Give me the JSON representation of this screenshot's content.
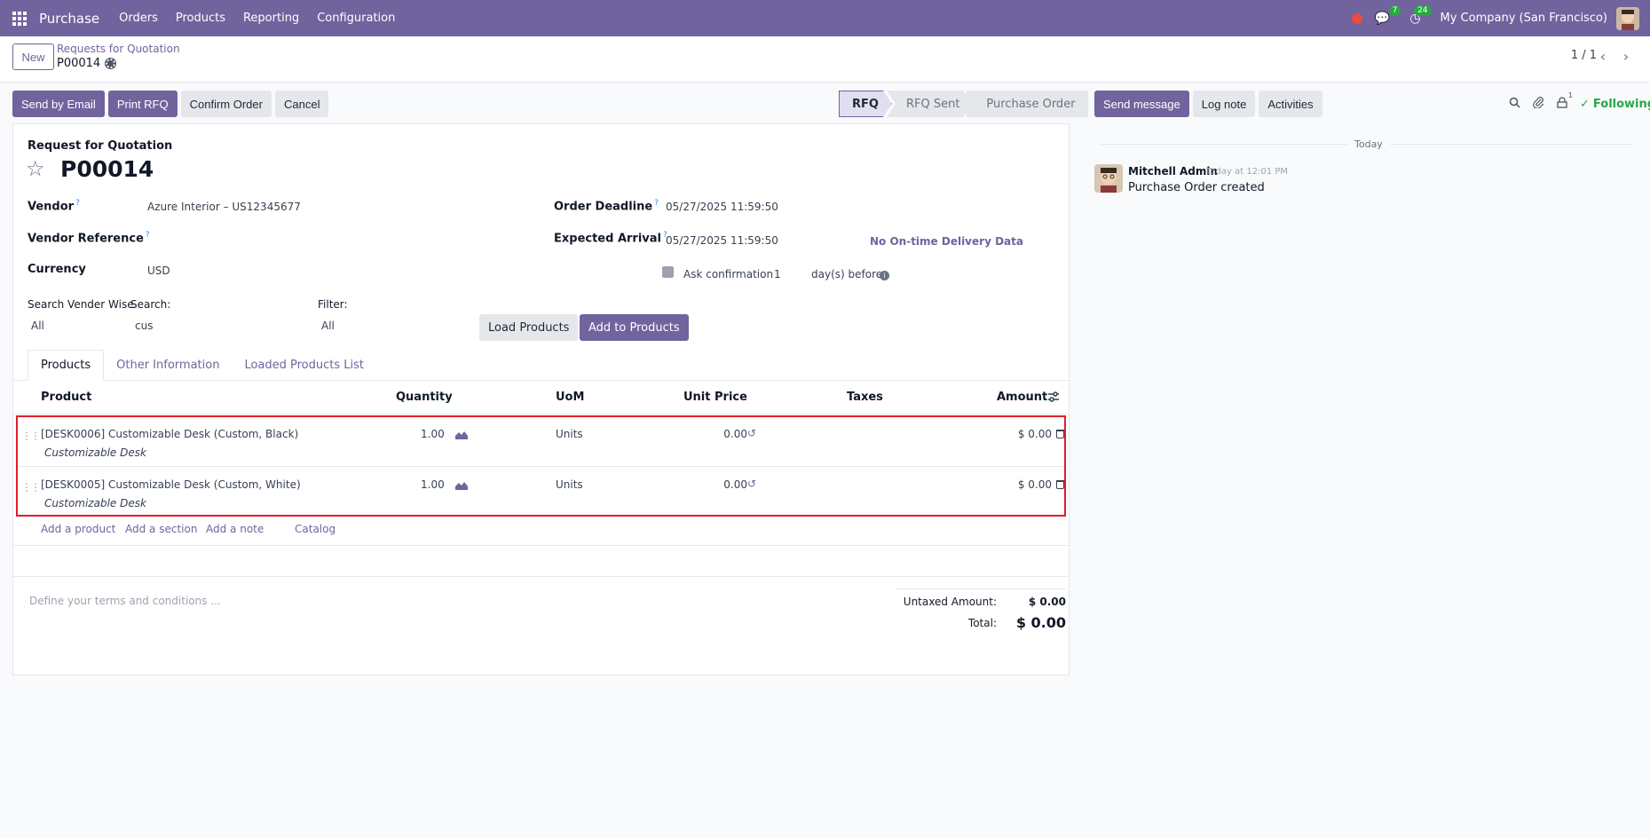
{
  "navbar": {
    "app_name": "Purchase",
    "menu": [
      "Orders",
      "Products",
      "Reporting",
      "Configuration"
    ],
    "messages_count": "7",
    "activities_count": "24",
    "company": "My Company (San Francisco)"
  },
  "control_panel": {
    "new_label": "New",
    "breadcrumb_parent": "Requests for Quotation",
    "breadcrumb_current": "P00014",
    "pager": "1 / 1"
  },
  "actions": {
    "send_email": "Send by Email",
    "print_rfq": "Print RFQ",
    "confirm_order": "Confirm Order",
    "cancel": "Cancel"
  },
  "statusbar": [
    "RFQ",
    "RFQ Sent",
    "Purchase Order"
  ],
  "form": {
    "doc_type": "Request for Quotation",
    "name": "P00014",
    "vendor_label": "Vendor",
    "vendor_value": "Azure Interior – US12345677",
    "vendor_ref_label": "Vendor Reference",
    "currency_label": "Currency",
    "currency_value": "USD",
    "order_deadline_label": "Order Deadline",
    "order_deadline_value": "05/27/2025 11:59:50",
    "expected_arrival_label": "Expected Arrival",
    "expected_arrival_value": "05/27/2025 11:59:50",
    "on_time_link": "No On-time Delivery Data",
    "ask_confirmation_label": "Ask confirmation",
    "ask_confirmation_days": "1",
    "ask_confirmation_suffix": "day(s) before",
    "search_vendor_label": "Search Vender Wise",
    "search_vendor_value": "All",
    "search_label": "Search:",
    "search_value": "cus",
    "filter_label": "Filter:",
    "filter_value": "All",
    "load_products": "Load Products",
    "add_to_products": "Add to Products"
  },
  "tabs": [
    "Products",
    "Other Information",
    "Loaded Products List"
  ],
  "table": {
    "headers": {
      "product": "Product",
      "quantity": "Quantity",
      "uom": "UoM",
      "unit_price": "Unit Price",
      "taxes": "Taxes",
      "amount": "Amount"
    },
    "rows": [
      {
        "product": "[DESK0006] Customizable Desk (Custom, Black)",
        "description": "Customizable Desk",
        "quantity": "1.00",
        "uom": "Units",
        "unit_price": "0.00",
        "amount": "$ 0.00"
      },
      {
        "product": "[DESK0005] Customizable Desk (Custom, White)",
        "description": "Customizable Desk",
        "quantity": "1.00",
        "uom": "Units",
        "unit_price": "0.00",
        "amount": "$ 0.00"
      }
    ],
    "add_product": "Add a product",
    "add_section": "Add a section",
    "add_note": "Add a note",
    "catalog": "Catalog"
  },
  "footer": {
    "terms_placeholder": "Define your terms and conditions ...",
    "untaxed_label": "Untaxed Amount:",
    "untaxed_value": "$ 0.00",
    "total_label": "Total:",
    "total_value": "$ 0.00"
  },
  "chatter": {
    "send_message": "Send message",
    "log_note": "Log note",
    "activities": "Activities",
    "followers_count": "1",
    "following": "Following",
    "date_separator": "Today",
    "author": "Mitchell Admin",
    "time": "Today at 12:01 PM",
    "body": "Purchase Order created"
  },
  "colors": {
    "brand": "#71639e",
    "highlight_border": "#e11d2a",
    "following": "#28a745"
  }
}
